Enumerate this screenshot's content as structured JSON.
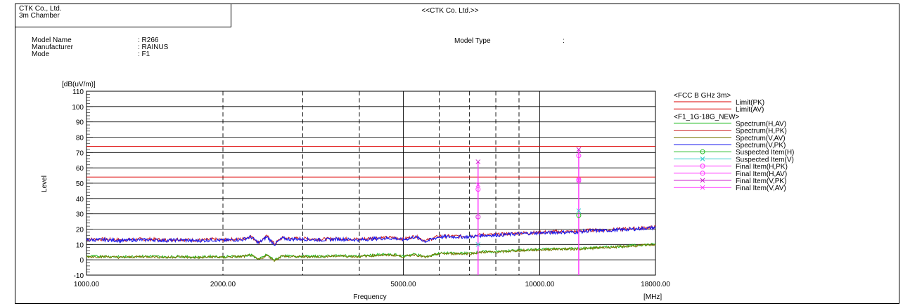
{
  "header": {
    "company_line1": "CTK Co., Ltd.",
    "company_line2": "3m Chamber",
    "center_title": "<<CTK Co. Ltd.>>"
  },
  "info": {
    "model_name_label": "Model Name",
    "model_name_value": ": R266",
    "manufacturer_label": "Manufacturer",
    "manufacturer_value": ": RAINUS",
    "mode_label": "Mode",
    "mode_value": ": F1",
    "model_type_label": "Model Type",
    "model_type_value": ":"
  },
  "chart_data": {
    "type": "line",
    "title": "",
    "xlabel": "Frequency",
    "xunit": "[MHz]",
    "ylabel": "Level",
    "yunit": "[dB(uV/m)]",
    "x_scale": "log",
    "xlim": [
      1000,
      18000
    ],
    "ylim": [
      -10,
      110
    ],
    "x_ticks": [
      "1000.00",
      "2000.00",
      "5000.00",
      "10000.00",
      "18000.00"
    ],
    "y_ticks": [
      "110",
      "100",
      "90",
      "80",
      "70",
      "60",
      "50",
      "40",
      "30",
      "20",
      "10",
      "0",
      "-10"
    ],
    "grid": true,
    "legend_position": "right",
    "legend_groups": [
      {
        "title": "<FCC B GHz 3m>",
        "items": [
          {
            "name": "Limit(PK)",
            "color": "#dd0000",
            "marker": "none"
          },
          {
            "name": "Limit(AV)",
            "color": "#dd0000",
            "marker": "none"
          }
        ]
      },
      {
        "title": "<F1_1G-18G_NEW>",
        "items": [
          {
            "name": "Spectrum(H,AV)",
            "color": "#22bb22",
            "marker": "none"
          },
          {
            "name": "Spectrum(H,PK)",
            "color": "#cc2222",
            "marker": "none"
          },
          {
            "name": "Spectrum(V,AV)",
            "color": "#777700",
            "marker": "none"
          },
          {
            "name": "Spectrum(V,PK)",
            "color": "#1a1aee",
            "marker": "none"
          },
          {
            "name": "Suspected Item(H)",
            "color": "#22bb22",
            "marker": "circle"
          },
          {
            "name": "Suspected Item(V)",
            "color": "#33cccc",
            "marker": "x"
          },
          {
            "name": "Final Item(H,PK)",
            "color": "#ff33ff",
            "marker": "circle"
          },
          {
            "name": "Final Item(H,AV)",
            "color": "#ff33ff",
            "marker": "circle"
          },
          {
            "name": "Final Item(V,PK)",
            "color": "#cc22cc",
            "marker": "x"
          },
          {
            "name": "Final Item(V,AV)",
            "color": "#ff33ff",
            "marker": "x"
          }
        ]
      }
    ],
    "limits": {
      "pk": 74,
      "av": 54
    },
    "spectrum_pk": {
      "x": [
        1000,
        1100,
        1200,
        1300,
        1400,
        1500,
        1600,
        1700,
        1800,
        1900,
        2000,
        2100,
        2200,
        2300,
        2400,
        2500,
        2600,
        2700,
        2800,
        3000,
        3300,
        3600,
        4000,
        4400,
        4800,
        5000,
        5300,
        5600,
        6000,
        6500,
        7000,
        7500,
        8000,
        8500,
        9000,
        10000,
        11000,
        12000,
        13000,
        14000,
        15000,
        16000,
        17000,
        18000
      ],
      "y": [
        13,
        13,
        12.5,
        13,
        13,
        12.5,
        13,
        12.5,
        12.5,
        13,
        12.5,
        13,
        13,
        15,
        11,
        15,
        10,
        14,
        13.5,
        13.5,
        13,
        13.5,
        13,
        14,
        14,
        13,
        15,
        12,
        15,
        15,
        15,
        16,
        16,
        16.5,
        17,
        17.5,
        18,
        18,
        19,
        19,
        19.5,
        20,
        20.5,
        21
      ]
    },
    "spectrum_av": {
      "x": [
        1000,
        1100,
        1200,
        1300,
        1400,
        1500,
        1600,
        1700,
        1800,
        1900,
        2000,
        2100,
        2200,
        2300,
        2400,
        2500,
        2600,
        2700,
        2800,
        3000,
        3300,
        3600,
        4000,
        4400,
        4800,
        5000,
        5300,
        5600,
        6000,
        6500,
        7000,
        7500,
        8000,
        8500,
        9000,
        10000,
        11000,
        12000,
        13000,
        14000,
        15000,
        16000,
        17000,
        18000
      ],
      "y": [
        2,
        2,
        1.5,
        2,
        2,
        1.5,
        2,
        1.5,
        1.5,
        2,
        1.5,
        2,
        2,
        3,
        0,
        3,
        -0.5,
        2.5,
        2,
        2,
        2,
        2.5,
        2,
        3,
        3,
        2,
        3.5,
        1.5,
        4,
        4,
        4,
        5,
        5,
        5.5,
        6,
        6.5,
        7,
        7,
        7.5,
        8,
        8.5,
        9,
        9.5,
        10
      ]
    },
    "final_items": [
      {
        "freq": 7310,
        "h_pk": 46,
        "h_av": 28,
        "v_pk": 64,
        "v_av": 49,
        "suspected_h": 28,
        "suspected_v": 10
      },
      {
        "freq": 12190,
        "h_pk": 68,
        "h_av": 52,
        "v_pk": 72,
        "v_av": 52,
        "suspected_h": 29,
        "suspected_v": 32
      }
    ]
  }
}
